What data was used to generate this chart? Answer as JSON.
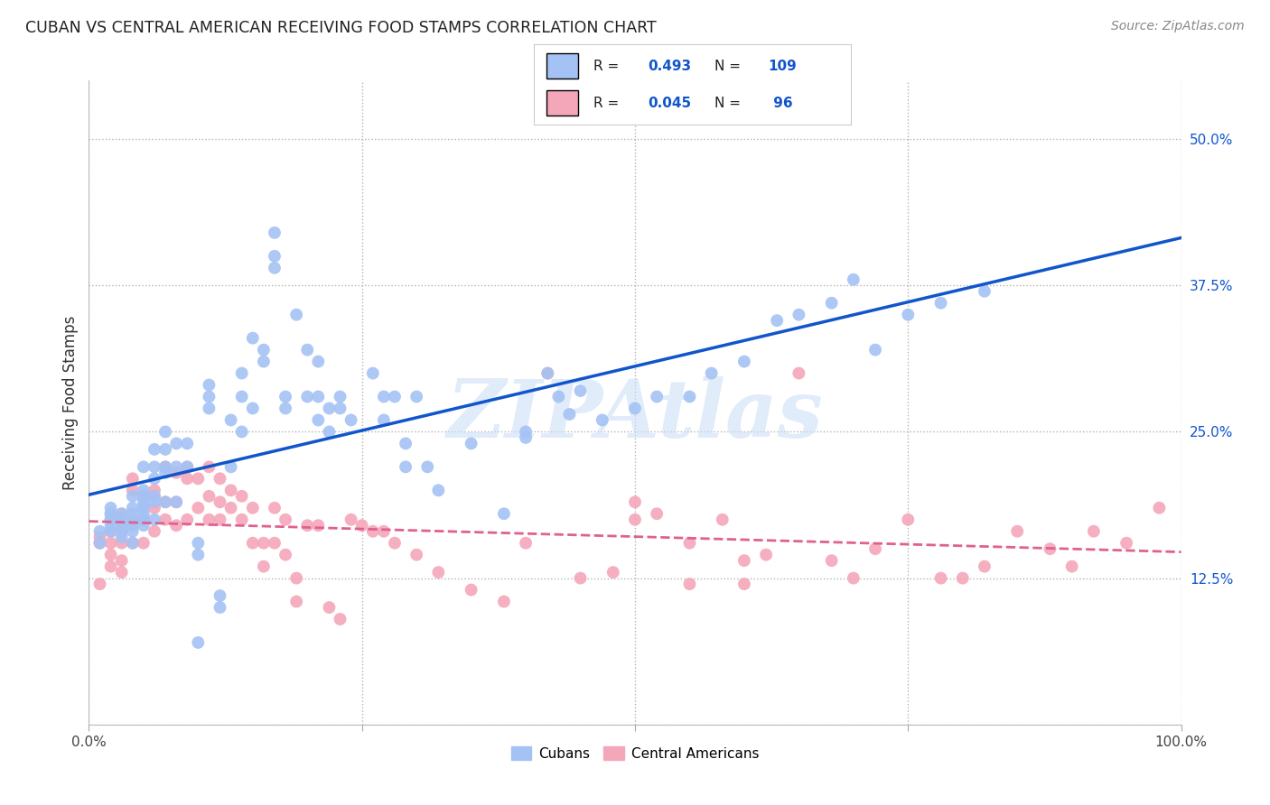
{
  "title": "CUBAN VS CENTRAL AMERICAN RECEIVING FOOD STAMPS CORRELATION CHART",
  "source": "Source: ZipAtlas.com",
  "ylabel": "Receiving Food Stamps",
  "xlim": [
    0,
    1.0
  ],
  "ylim": [
    0,
    0.55
  ],
  "cuban_color": "#a4c2f4",
  "central_color": "#f4a7b9",
  "cuban_line_color": "#1155cc",
  "central_line_color": "#e06090",
  "legend_R_cuban": "0.493",
  "legend_N_cuban": "109",
  "legend_R_central": "0.045",
  "legend_N_central": "96",
  "watermark": "ZIPAtlas",
  "background_color": "#ffffff",
  "grid_color": "#aaaaaa",
  "cuban_x": [
    0.01,
    0.01,
    0.02,
    0.02,
    0.02,
    0.02,
    0.02,
    0.02,
    0.03,
    0.03,
    0.03,
    0.03,
    0.03,
    0.03,
    0.04,
    0.04,
    0.04,
    0.04,
    0.04,
    0.04,
    0.04,
    0.05,
    0.05,
    0.05,
    0.05,
    0.05,
    0.05,
    0.05,
    0.05,
    0.06,
    0.06,
    0.06,
    0.06,
    0.06,
    0.06,
    0.07,
    0.07,
    0.07,
    0.07,
    0.07,
    0.08,
    0.08,
    0.08,
    0.09,
    0.09,
    0.1,
    0.1,
    0.1,
    0.11,
    0.11,
    0.11,
    0.12,
    0.12,
    0.13,
    0.13,
    0.14,
    0.14,
    0.14,
    0.15,
    0.15,
    0.16,
    0.16,
    0.17,
    0.17,
    0.17,
    0.18,
    0.18,
    0.19,
    0.2,
    0.2,
    0.21,
    0.21,
    0.21,
    0.22,
    0.22,
    0.23,
    0.23,
    0.24,
    0.26,
    0.27,
    0.27,
    0.28,
    0.29,
    0.29,
    0.3,
    0.31,
    0.32,
    0.35,
    0.38,
    0.4,
    0.4,
    0.42,
    0.43,
    0.44,
    0.45,
    0.47,
    0.5,
    0.52,
    0.55,
    0.57,
    0.6,
    0.63,
    0.65,
    0.68,
    0.7,
    0.72,
    0.75,
    0.78,
    0.82
  ],
  "cuban_y": [
    0.155,
    0.165,
    0.175,
    0.18,
    0.17,
    0.18,
    0.165,
    0.185,
    0.17,
    0.18,
    0.175,
    0.17,
    0.165,
    0.16,
    0.18,
    0.195,
    0.175,
    0.17,
    0.155,
    0.185,
    0.165,
    0.195,
    0.19,
    0.22,
    0.2,
    0.185,
    0.18,
    0.175,
    0.17,
    0.22,
    0.235,
    0.195,
    0.21,
    0.19,
    0.175,
    0.25,
    0.235,
    0.22,
    0.215,
    0.19,
    0.24,
    0.22,
    0.19,
    0.24,
    0.22,
    0.07,
    0.155,
    0.145,
    0.29,
    0.28,
    0.27,
    0.11,
    0.1,
    0.26,
    0.22,
    0.3,
    0.28,
    0.25,
    0.33,
    0.27,
    0.32,
    0.31,
    0.42,
    0.4,
    0.39,
    0.28,
    0.27,
    0.35,
    0.32,
    0.28,
    0.31,
    0.28,
    0.26,
    0.27,
    0.25,
    0.28,
    0.27,
    0.26,
    0.3,
    0.28,
    0.26,
    0.28,
    0.24,
    0.22,
    0.28,
    0.22,
    0.2,
    0.24,
    0.18,
    0.245,
    0.25,
    0.3,
    0.28,
    0.265,
    0.285,
    0.26,
    0.27,
    0.28,
    0.28,
    0.3,
    0.31,
    0.345,
    0.35,
    0.36,
    0.38,
    0.32,
    0.35,
    0.36,
    0.37
  ],
  "central_x": [
    0.01,
    0.01,
    0.01,
    0.02,
    0.02,
    0.02,
    0.02,
    0.02,
    0.03,
    0.03,
    0.03,
    0.03,
    0.03,
    0.04,
    0.04,
    0.04,
    0.04,
    0.05,
    0.05,
    0.05,
    0.05,
    0.06,
    0.06,
    0.06,
    0.06,
    0.07,
    0.07,
    0.07,
    0.08,
    0.08,
    0.08,
    0.09,
    0.09,
    0.09,
    0.1,
    0.1,
    0.11,
    0.11,
    0.11,
    0.12,
    0.12,
    0.12,
    0.13,
    0.13,
    0.14,
    0.14,
    0.15,
    0.15,
    0.16,
    0.16,
    0.17,
    0.17,
    0.18,
    0.18,
    0.19,
    0.19,
    0.2,
    0.21,
    0.22,
    0.23,
    0.24,
    0.25,
    0.26,
    0.27,
    0.28,
    0.3,
    0.32,
    0.35,
    0.38,
    0.4,
    0.42,
    0.45,
    0.48,
    0.5,
    0.52,
    0.55,
    0.58,
    0.6,
    0.62,
    0.65,
    0.68,
    0.7,
    0.72,
    0.75,
    0.78,
    0.8,
    0.82,
    0.85,
    0.88,
    0.9,
    0.92,
    0.95,
    0.98,
    0.5,
    0.55,
    0.6
  ],
  "central_y": [
    0.155,
    0.16,
    0.12,
    0.175,
    0.165,
    0.155,
    0.145,
    0.135,
    0.18,
    0.165,
    0.155,
    0.14,
    0.13,
    0.21,
    0.2,
    0.175,
    0.155,
    0.195,
    0.185,
    0.175,
    0.155,
    0.2,
    0.195,
    0.185,
    0.165,
    0.22,
    0.19,
    0.175,
    0.215,
    0.19,
    0.17,
    0.22,
    0.21,
    0.175,
    0.21,
    0.185,
    0.22,
    0.195,
    0.175,
    0.21,
    0.19,
    0.175,
    0.2,
    0.185,
    0.195,
    0.175,
    0.185,
    0.155,
    0.155,
    0.135,
    0.185,
    0.155,
    0.175,
    0.145,
    0.125,
    0.105,
    0.17,
    0.17,
    0.1,
    0.09,
    0.175,
    0.17,
    0.165,
    0.165,
    0.155,
    0.145,
    0.13,
    0.115,
    0.105,
    0.155,
    0.3,
    0.125,
    0.13,
    0.175,
    0.18,
    0.12,
    0.175,
    0.12,
    0.145,
    0.3,
    0.14,
    0.125,
    0.15,
    0.175,
    0.125,
    0.125,
    0.135,
    0.165,
    0.15,
    0.135,
    0.165,
    0.155,
    0.185,
    0.19,
    0.155,
    0.14
  ]
}
